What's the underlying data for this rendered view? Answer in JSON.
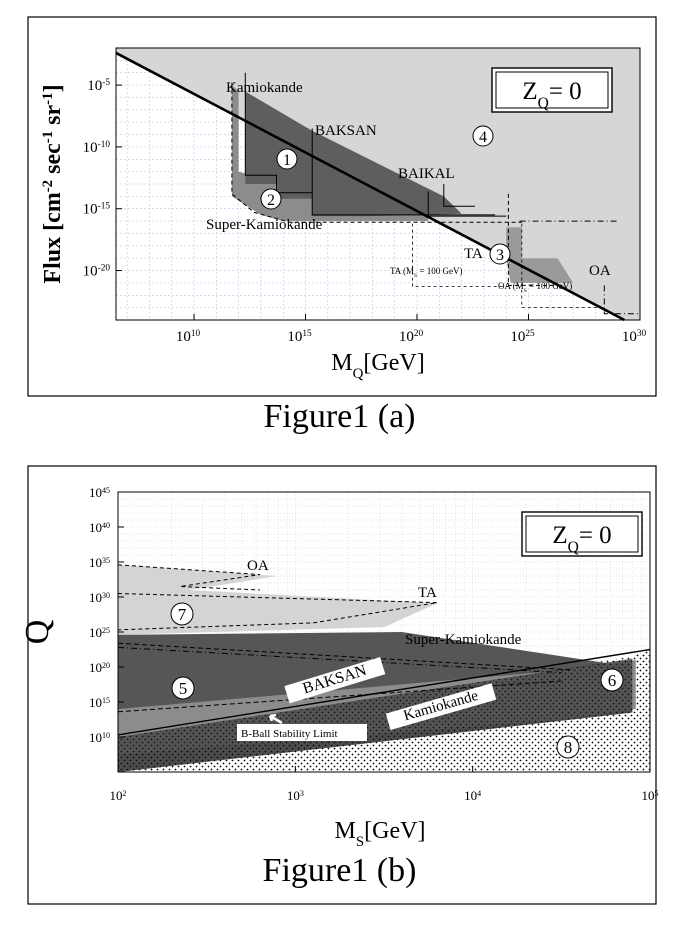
{
  "chart_data": [
    {
      "type": "area",
      "xlabel_main": "M",
      "xlabel_sub": "Q",
      "xlabel_unit": "[GeV]",
      "ylabel": "Flux [cm",
      "ylabel_rest": "-2",
      "ylabel_b": " sec",
      "ylabel_c": "-1",
      "ylabel_d": " sr",
      "ylabel_e": "-1",
      "ylabel_f": "]",
      "x_scale": "log",
      "y_scale": "log",
      "xlim_exp": [
        6.5,
        30
      ],
      "ylim_exp": [
        -24,
        -2
      ],
      "x_ticks": [
        {
          "base": "10",
          "exp": "10",
          "v": 10
        },
        {
          "base": "10",
          "exp": "15",
          "v": 15
        },
        {
          "base": "10",
          "exp": "20",
          "v": 20
        },
        {
          "base": "10",
          "exp": "25",
          "v": 25
        },
        {
          "base": "10",
          "exp": "30",
          "v": 30
        }
      ],
      "y_ticks": [
        {
          "base": "10",
          "exp": "-5",
          "v": -5
        },
        {
          "base": "10",
          "exp": "-10",
          "v": -10
        },
        {
          "base": "10",
          "exp": "-15",
          "v": -15
        },
        {
          "base": "10",
          "exp": "-20",
          "v": -20
        }
      ],
      "box_label": "Z",
      "box_sub": "Q",
      "box_rest": "= 0",
      "labels": {
        "kamiokande": "Kamiokande",
        "baksan": "BAKSAN",
        "baikal": "BAIKAL",
        "superk": "Super-Kamiokande",
        "ta": "TA",
        "oa": "OA",
        "ta_note": "TA (M",
        "ta_note_sub": "S",
        "ta_note_rest": " = 100 GeV)",
        "oa_note": "OA (M",
        "oa_note_sub": "S",
        "oa_note_rest": " = 100 GeV)"
      },
      "region_labels": [
        "1",
        "2",
        "3",
        "4"
      ],
      "grid": true,
      "colors": {
        "light": "#d6d6d6",
        "dark": "#5e5e5e",
        "mid": "#9a9a9a",
        "grid": "#b8c8e8"
      }
    },
    {
      "type": "area",
      "xlabel_main": "M",
      "xlabel_sub": "S",
      "xlabel_unit": "[GeV]",
      "ylabel": "Q",
      "x_scale": "log",
      "y_scale": "log",
      "xlim_exp": [
        2,
        5
      ],
      "ylim_exp": [
        5,
        45
      ],
      "x_ticks": [
        {
          "base": "10",
          "exp": "2",
          "v": 2
        },
        {
          "base": "10",
          "exp": "3",
          "v": 3
        },
        {
          "base": "10",
          "exp": "4",
          "v": 4
        },
        {
          "base": "10",
          "exp": "5",
          "v": 5
        }
      ],
      "y_ticks": [
        {
          "base": "10",
          "exp": "10",
          "v": 10
        },
        {
          "base": "10",
          "exp": "15",
          "v": 15
        },
        {
          "base": "10",
          "exp": "20",
          "v": 20
        },
        {
          "base": "10",
          "exp": "25",
          "v": 25
        },
        {
          "base": "10",
          "exp": "30",
          "v": 30
        },
        {
          "base": "10",
          "exp": "35",
          "v": 35
        },
        {
          "base": "10",
          "exp": "40",
          "v": 40
        },
        {
          "base": "10",
          "exp": "45",
          "v": 45
        }
      ],
      "box_label": "Z",
      "box_sub": "Q",
      "box_rest": "= 0",
      "labels": {
        "oa": "OA",
        "ta": "TA",
        "superk": "Super-Kamiokande",
        "baksan": "BAKSAN",
        "kamiokande": "Kamiokande",
        "bball": "B-Ball Stability Limit"
      },
      "region_labels": [
        "5",
        "6",
        "7",
        "8"
      ],
      "grid": true,
      "colors": {
        "light": "#d4d4d4",
        "dark": "#565656",
        "mid": "#8c8c8c",
        "grid": "#c8c8c8"
      }
    }
  ],
  "captions": {
    "a": "Figure1 (a)",
    "b": "Figure1 (b)"
  }
}
